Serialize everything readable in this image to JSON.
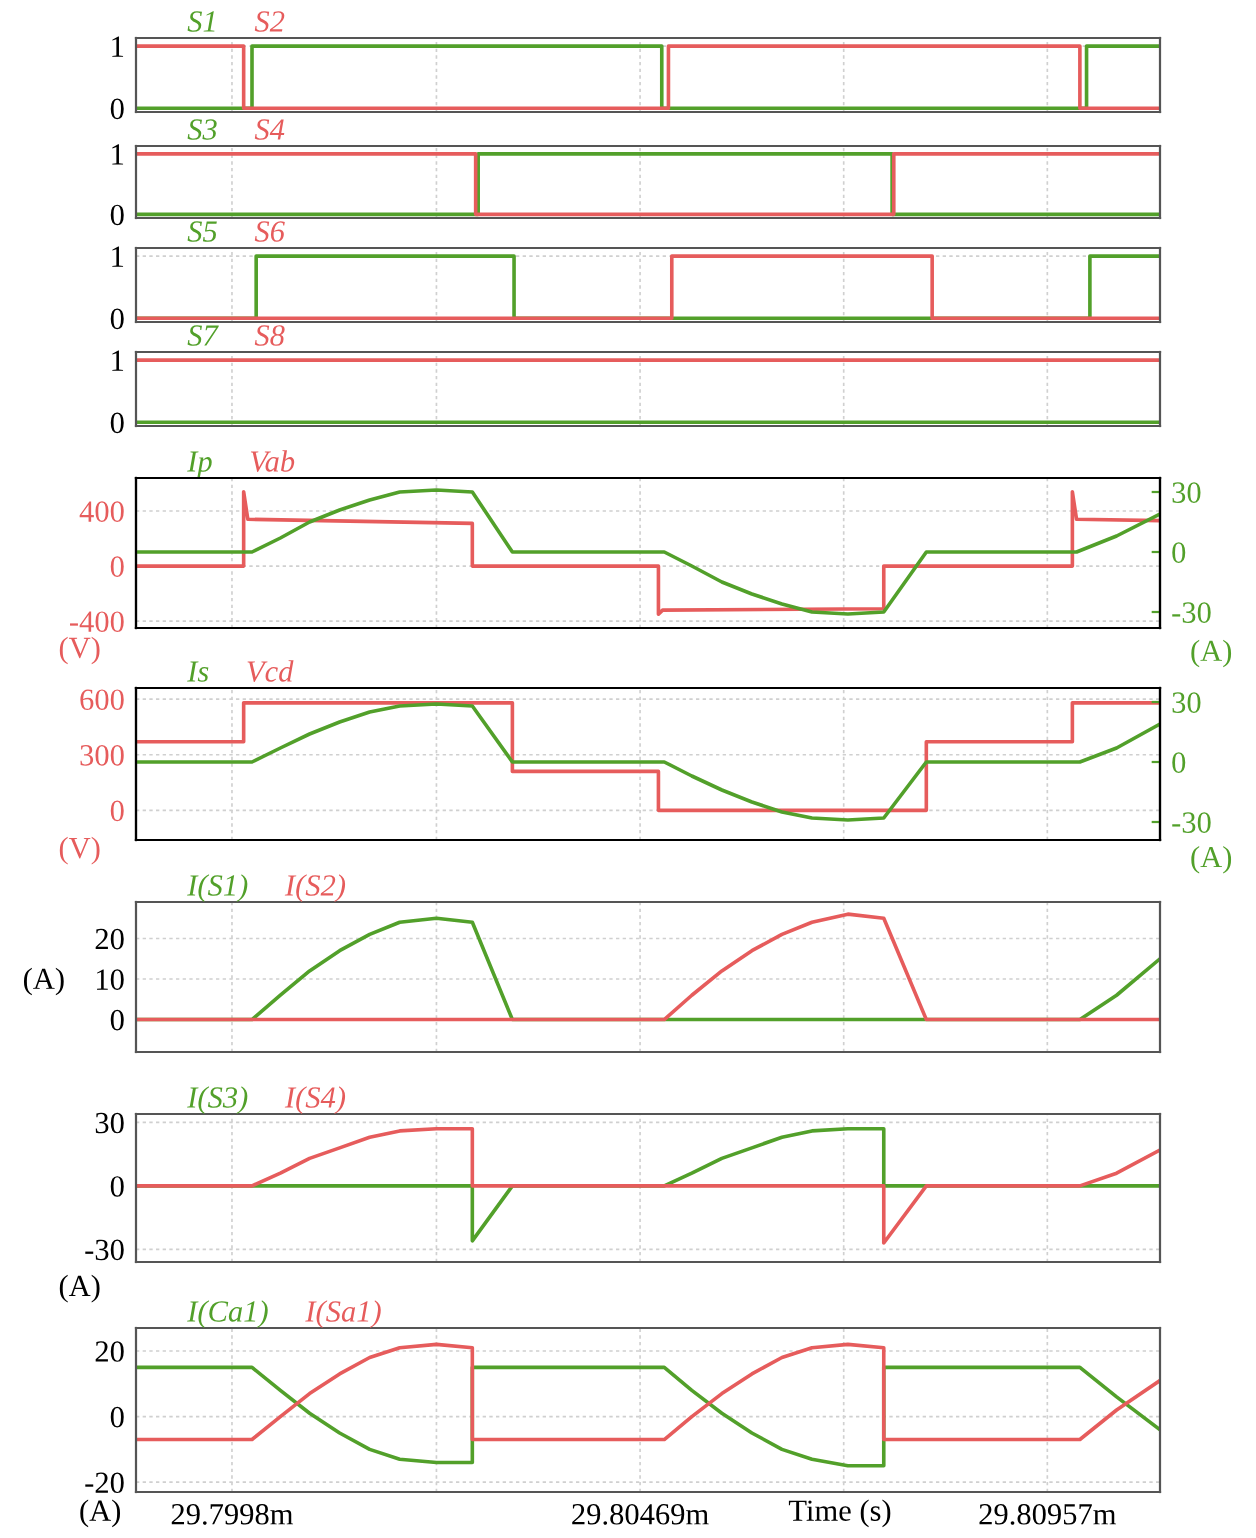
{
  "chart_data": [
    {
      "type": "line",
      "xlim": [
        29.79865,
        29.81092
      ],
      "xticks": [
        {
          "value": 29.7998,
          "label": null
        },
        {
          "value": 29.80225,
          "label": null
        },
        {
          "value": 29.80469,
          "label": null
        },
        {
          "value": 29.80713,
          "label": null
        },
        {
          "value": 29.80957,
          "label": null
        }
      ],
      "ylim": [
        -0.06,
        1.13
      ],
      "yticks": [
        0,
        1
      ],
      "tick_labels": "y",
      "grid": true,
      "legend": "top left",
      "series": [
        {
          "name": "S1",
          "color": "#52a02a",
          "x": [
            29.79865,
            29.80004,
            29.80004,
            29.80495,
            29.80495,
            29.81004,
            29.81004,
            29.81092
          ],
          "values": [
            0,
            0,
            1,
            1,
            0,
            0,
            1,
            1
          ]
        },
        {
          "name": "S2",
          "color": "#e65c5c",
          "x": [
            29.79865,
            29.79994,
            29.79994,
            29.80503,
            29.80503,
            29.80996,
            29.80996,
            29.81092
          ],
          "values": [
            1,
            1,
            0,
            0,
            1,
            1,
            0,
            0
          ]
        }
      ]
    },
    {
      "type": "line",
      "xlim": [
        29.79865,
        29.81092
      ],
      "xticks": [
        {
          "value": 29.7998,
          "label": null
        },
        {
          "value": 29.80225,
          "label": null
        },
        {
          "value": 29.80469,
          "label": null
        },
        {
          "value": 29.80713,
          "label": null
        },
        {
          "value": 29.80957,
          "label": null
        }
      ],
      "ylim": [
        -0.06,
        1.13
      ],
      "yticks": [
        0,
        1
      ],
      "tick_labels": "y",
      "grid": true,
      "legend": "top left",
      "series": [
        {
          "name": "S3",
          "color": "#52a02a",
          "x": [
            29.79865,
            29.80275,
            29.80275,
            29.80771,
            29.80771,
            29.81092
          ],
          "values": [
            0,
            0,
            1,
            1,
            0,
            0
          ]
        },
        {
          "name": "S4",
          "color": "#e65c5c",
          "x": [
            29.79865,
            29.80272,
            29.80272,
            29.80773,
            29.80773,
            29.81092
          ],
          "values": [
            1,
            1,
            0,
            0,
            1,
            1
          ]
        }
      ]
    },
    {
      "type": "line",
      "xlim": [
        29.79865,
        29.81092
      ],
      "xticks": [
        {
          "value": 29.7998,
          "label": null
        },
        {
          "value": 29.80225,
          "label": null
        },
        {
          "value": 29.80469,
          "label": null
        },
        {
          "value": 29.80713,
          "label": null
        },
        {
          "value": 29.80957,
          "label": null
        }
      ],
      "ylim": [
        -0.06,
        1.13
      ],
      "yticks": [
        0,
        1
      ],
      "tick_labels": "y",
      "grid": true,
      "legend": "top left",
      "series": [
        {
          "name": "S5",
          "color": "#52a02a",
          "x": [
            29.79865,
            29.80009,
            29.80009,
            29.80318,
            29.80318,
            29.81008,
            29.81008,
            29.81092
          ],
          "values": [
            0,
            0,
            1,
            1,
            0,
            0,
            1,
            1
          ]
        },
        {
          "name": "S6",
          "color": "#e65c5c",
          "x": [
            29.79865,
            29.80507,
            29.80507,
            29.80819,
            29.80819,
            29.81092
          ],
          "values": [
            0,
            0,
            1,
            1,
            0,
            0
          ]
        }
      ]
    },
    {
      "type": "line",
      "xlim": [
        29.79865,
        29.81092
      ],
      "xticks": [
        {
          "value": 29.7998,
          "label": null
        },
        {
          "value": 29.80225,
          "label": null
        },
        {
          "value": 29.80469,
          "label": null
        },
        {
          "value": 29.80713,
          "label": null
        },
        {
          "value": 29.80957,
          "label": null
        }
      ],
      "ylim": [
        -0.06,
        1.13
      ],
      "yticks": [
        0,
        1
      ],
      "tick_labels": "y",
      "grid": true,
      "legend": "top left",
      "series": [
        {
          "name": "S7",
          "color": "#52a02a",
          "x": [
            29.79865,
            29.81092
          ],
          "values": [
            0,
            0
          ]
        },
        {
          "name": "S8",
          "color": "#e65c5c",
          "x": [
            29.79865,
            29.81092
          ],
          "values": [
            1,
            1
          ]
        }
      ]
    },
    {
      "type": "line",
      "xlim": [
        29.79865,
        29.81092
      ],
      "xticks": [
        {
          "value": 29.7998,
          "label": null
        },
        {
          "value": 29.80225,
          "label": null
        },
        {
          "value": 29.80469,
          "label": null
        },
        {
          "value": 29.80713,
          "label": null
        },
        {
          "value": 29.80957,
          "label": null
        }
      ],
      "ylim": [
        -450,
        640
      ],
      "yticks": [
        -400,
        0,
        400
      ],
      "y2lim": [
        -38,
        37
      ],
      "y2ticks": [
        -30,
        0,
        30
      ],
      "ylabel": "(V)",
      "y2label": "(A)",
      "tick_labels": "y",
      "grid": true,
      "legend": "top left",
      "series": [
        {
          "name": "Ip",
          "color": "#52a02a",
          "axis": "y2",
          "x": [
            29.79865,
            29.80004,
            29.80038,
            29.80073,
            29.80109,
            29.80145,
            29.80181,
            29.80225,
            29.80268,
            29.80316,
            29.80498,
            29.80531,
            29.80567,
            29.80603,
            29.80639,
            29.80675,
            29.80718,
            29.80761,
            29.80812,
            29.80992,
            29.8104,
            29.81092
          ],
          "values": [
            0,
            0,
            7,
            15,
            21,
            26,
            30,
            31,
            30,
            0,
            0,
            -7,
            -15,
            -21,
            -26,
            -30,
            -31,
            -30,
            0,
            0,
            8,
            19
          ]
        },
        {
          "name": "Vab",
          "color": "#e65c5c",
          "axis": "y",
          "x": [
            29.79865,
            29.79994,
            29.79994,
            29.79999,
            29.80268,
            29.80268,
            29.80491,
            29.80491,
            29.80496,
            29.80761,
            29.80761,
            29.80987,
            29.80987,
            29.80992,
            29.81092
          ],
          "values": [
            0,
            0,
            540,
            340,
            310,
            0,
            0,
            -350,
            -320,
            -310,
            0,
            0,
            540,
            340,
            330
          ]
        }
      ]
    },
    {
      "type": "line",
      "xlim": [
        29.79865,
        29.81092
      ],
      "xticks": [
        {
          "value": 29.7998,
          "label": null
        },
        {
          "value": 29.80225,
          "label": null
        },
        {
          "value": 29.80469,
          "label": null
        },
        {
          "value": 29.80713,
          "label": null
        },
        {
          "value": 29.80957,
          "label": null
        }
      ],
      "ylim": [
        -160,
        660
      ],
      "yticks": [
        0,
        300,
        600
      ],
      "y2lim": [
        -39,
        37
      ],
      "y2ticks": [
        -30,
        0,
        30
      ],
      "ylabel": "(V)",
      "y2label": "(A)",
      "tick_labels": "y",
      "grid": true,
      "legend": "top left",
      "series": [
        {
          "name": "Is",
          "color": "#52a02a",
          "axis": "y2",
          "x": [
            29.79865,
            29.80004,
            29.80038,
            29.80073,
            29.80109,
            29.80145,
            29.80181,
            29.80225,
            29.80268,
            29.80316,
            29.80498,
            29.80531,
            29.80567,
            29.80603,
            29.80639,
            29.80675,
            29.80718,
            29.80761,
            29.80812,
            29.80996,
            29.8104,
            29.81092
          ],
          "values": [
            0,
            0,
            7,
            14,
            20,
            25,
            28,
            29,
            28,
            0,
            0,
            -7,
            -14,
            -20,
            -25,
            -28,
            -29,
            -28,
            0,
            0,
            7,
            19
          ]
        },
        {
          "name": "Vcd",
          "color": "#e65c5c",
          "axis": "y",
          "x": [
            29.79865,
            29.79994,
            29.79994,
            29.80316,
            29.80316,
            29.80491,
            29.80491,
            29.80812,
            29.80812,
            29.80987,
            29.80987,
            29.81092
          ],
          "values": [
            370,
            370,
            580,
            580,
            210,
            210,
            0,
            0,
            370,
            370,
            580,
            580
          ]
        }
      ]
    },
    {
      "type": "line",
      "xlim": [
        29.79865,
        29.81092
      ],
      "xticks": [
        {
          "value": 29.7998,
          "label": null
        },
        {
          "value": 29.80225,
          "label": null
        },
        {
          "value": 29.80469,
          "label": null
        },
        {
          "value": 29.80713,
          "label": null
        },
        {
          "value": 29.80957,
          "label": null
        }
      ],
      "ylim": [
        -8,
        29
      ],
      "yticks": [
        0,
        10,
        20
      ],
      "ylabel": "(A)",
      "tick_labels": "y",
      "grid": true,
      "legend": "top left",
      "series": [
        {
          "name": "I(S1)",
          "color": "#52a02a",
          "x": [
            29.79865,
            29.80004,
            29.80038,
            29.80073,
            29.80109,
            29.80145,
            29.80181,
            29.80225,
            29.80268,
            29.80316,
            29.80996,
            29.8104,
            29.81092
          ],
          "values": [
            0,
            0,
            6,
            12,
            17,
            21,
            24,
            25,
            24,
            0,
            0,
            6,
            15
          ]
        },
        {
          "name": "I(S2)",
          "color": "#e65c5c",
          "x": [
            29.79865,
            29.80498,
            29.80531,
            29.80567,
            29.80603,
            29.80639,
            29.80675,
            29.80718,
            29.80761,
            29.80812,
            29.81092
          ],
          "values": [
            0,
            0,
            6,
            12,
            17,
            21,
            24,
            26,
            25,
            0,
            0
          ]
        }
      ]
    },
    {
      "type": "line",
      "xlim": [
        29.79865,
        29.81092
      ],
      "xticks": [
        {
          "value": 29.7998,
          "label": null
        },
        {
          "value": 29.80225,
          "label": null
        },
        {
          "value": 29.80469,
          "label": null
        },
        {
          "value": 29.80713,
          "label": null
        },
        {
          "value": 29.80957,
          "label": null
        }
      ],
      "ylim": [
        -36,
        34
      ],
      "yticks": [
        -30,
        0,
        30
      ],
      "ylabel": "(A)",
      "tick_labels": "y",
      "grid": true,
      "legend": "top left",
      "series": [
        {
          "name": "I(S3)",
          "color": "#52a02a",
          "x": [
            29.79865,
            29.80268,
            29.80268,
            29.80316,
            29.80498,
            29.80531,
            29.80567,
            29.80603,
            29.80639,
            29.80675,
            29.80718,
            29.80761,
            29.80761,
            29.81092
          ],
          "values": [
            0,
            0,
            -26,
            0,
            0,
            6,
            13,
            18,
            23,
            26,
            27,
            27,
            0,
            0
          ]
        },
        {
          "name": "I(S4)",
          "color": "#e65c5c",
          "x": [
            29.79865,
            29.80004,
            29.80038,
            29.80073,
            29.80109,
            29.80145,
            29.80181,
            29.80225,
            29.80268,
            29.80268,
            29.80761,
            29.80761,
            29.80812,
            29.80996,
            29.8104,
            29.81092
          ],
          "values": [
            0,
            0,
            6,
            13,
            18,
            23,
            26,
            27,
            27,
            0,
            0,
            -27,
            0,
            0,
            6,
            17
          ]
        }
      ]
    },
    {
      "type": "line",
      "xlim": [
        29.79865,
        29.81092
      ],
      "xticks": [
        {
          "value": 29.7998,
          "label": "29.7998m"
        },
        {
          "value": 29.80225,
          "label": null
        },
        {
          "value": 29.80469,
          "label": "29.80469m"
        },
        {
          "value": 29.80713,
          "label": null
        },
        {
          "value": 29.80957,
          "label": "29.80957m"
        }
      ],
      "ylim": [
        -23,
        27
      ],
      "yticks": [
        -20,
        0,
        20
      ],
      "ylabel": "(A)",
      "xlabel": "Time (s)",
      "grid": true,
      "legend": "top left",
      "series": [
        {
          "name": "I(Ca1)",
          "color": "#52a02a",
          "x": [
            29.79865,
            29.80004,
            29.80038,
            29.80073,
            29.80109,
            29.80145,
            29.80181,
            29.80225,
            29.80268,
            29.80268,
            29.80498,
            29.80531,
            29.80567,
            29.80603,
            29.80639,
            29.80675,
            29.80718,
            29.80761,
            29.80761,
            29.80996,
            29.8104,
            29.81092
          ],
          "values": [
            15,
            15,
            8,
            1,
            -5,
            -10,
            -13,
            -14,
            -14,
            15,
            15,
            8,
            1,
            -5,
            -10,
            -13,
            -15,
            -15,
            15,
            15,
            6,
            -4
          ]
        },
        {
          "name": "I(Sa1)",
          "color": "#e65c5c",
          "x": [
            29.79865,
            29.80004,
            29.80038,
            29.80073,
            29.80109,
            29.80145,
            29.80181,
            29.80225,
            29.80268,
            29.80268,
            29.80498,
            29.80531,
            29.80567,
            29.80603,
            29.80639,
            29.80675,
            29.80718,
            29.80761,
            29.80761,
            29.80996,
            29.8104,
            29.81092
          ],
          "values": [
            -7,
            -7,
            0,
            7,
            13,
            18,
            21,
            22,
            21,
            -7,
            -7,
            0,
            7,
            13,
            18,
            21,
            22,
            21,
            -7,
            -7,
            2,
            11
          ]
        }
      ]
    }
  ]
}
